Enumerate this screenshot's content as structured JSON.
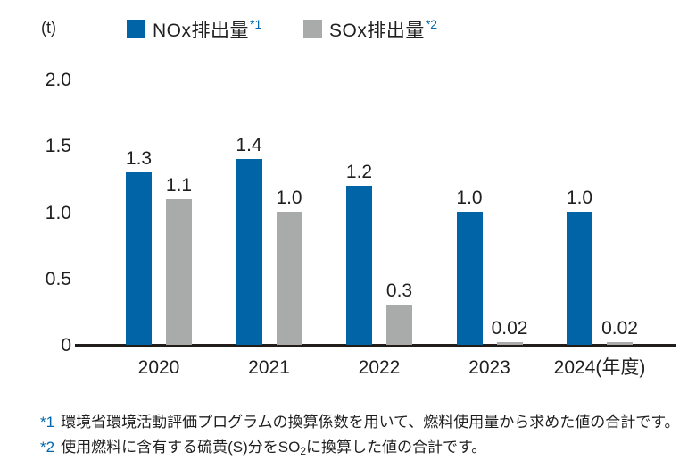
{
  "unit_label": "(t)",
  "legend": [
    {
      "label": "NOx排出量",
      "marker": "*1",
      "color": "#0064a7"
    },
    {
      "label": "SOx排出量",
      "marker": "*2",
      "color": "#a9abab"
    }
  ],
  "chart_data": {
    "type": "bar",
    "title": "",
    "unit": "(t)",
    "categories": [
      "2020",
      "2021",
      "2022",
      "2023",
      "2024"
    ],
    "last_category_suffix": "(年度)",
    "series": [
      {
        "name": "NOx排出量*1",
        "color": "#0064a7",
        "values": [
          1.3,
          1.4,
          1.2,
          1.0,
          1.0
        ],
        "labels": [
          "1.3",
          "1.4",
          "1.2",
          "1.0",
          "1.0"
        ]
      },
      {
        "name": "SOx排出量*2",
        "color": "#a9abab",
        "values": [
          1.1,
          1.0,
          0.3,
          0.02,
          0.02
        ],
        "labels": [
          "1.1",
          "1.0",
          "0.3",
          "0.02",
          "0.02"
        ]
      }
    ],
    "ylim": [
      0,
      2.0
    ],
    "yticks": [
      {
        "label": "2.0",
        "value": 2.0
      },
      {
        "label": "1.5",
        "value": 1.5
      },
      {
        "label": "1.0",
        "value": 1.0
      },
      {
        "label": "0.5",
        "value": 0.5
      },
      {
        "label": "0",
        "value": 0
      }
    ],
    "grid": false,
    "legend_position": "top"
  },
  "footnotes": {
    "note1": {
      "marker": "*1",
      "text": "環境省環境活動評価プログラムの換算係数を用いて、燃料使用量から求めた値の合計です。"
    },
    "note2": {
      "marker": "*2",
      "text_pre": "使用燃料に含有する硫黄(S)分を",
      "chem": "SO",
      "chem_sub": "2",
      "text_post": "に換算した値の合計です。"
    }
  },
  "colors": {
    "nox_blue": "#0064a7",
    "sox_gray": "#a9abab",
    "marker_blue": "#0067ac",
    "text": "#1f1f1f",
    "axis": "#211d1a"
  }
}
